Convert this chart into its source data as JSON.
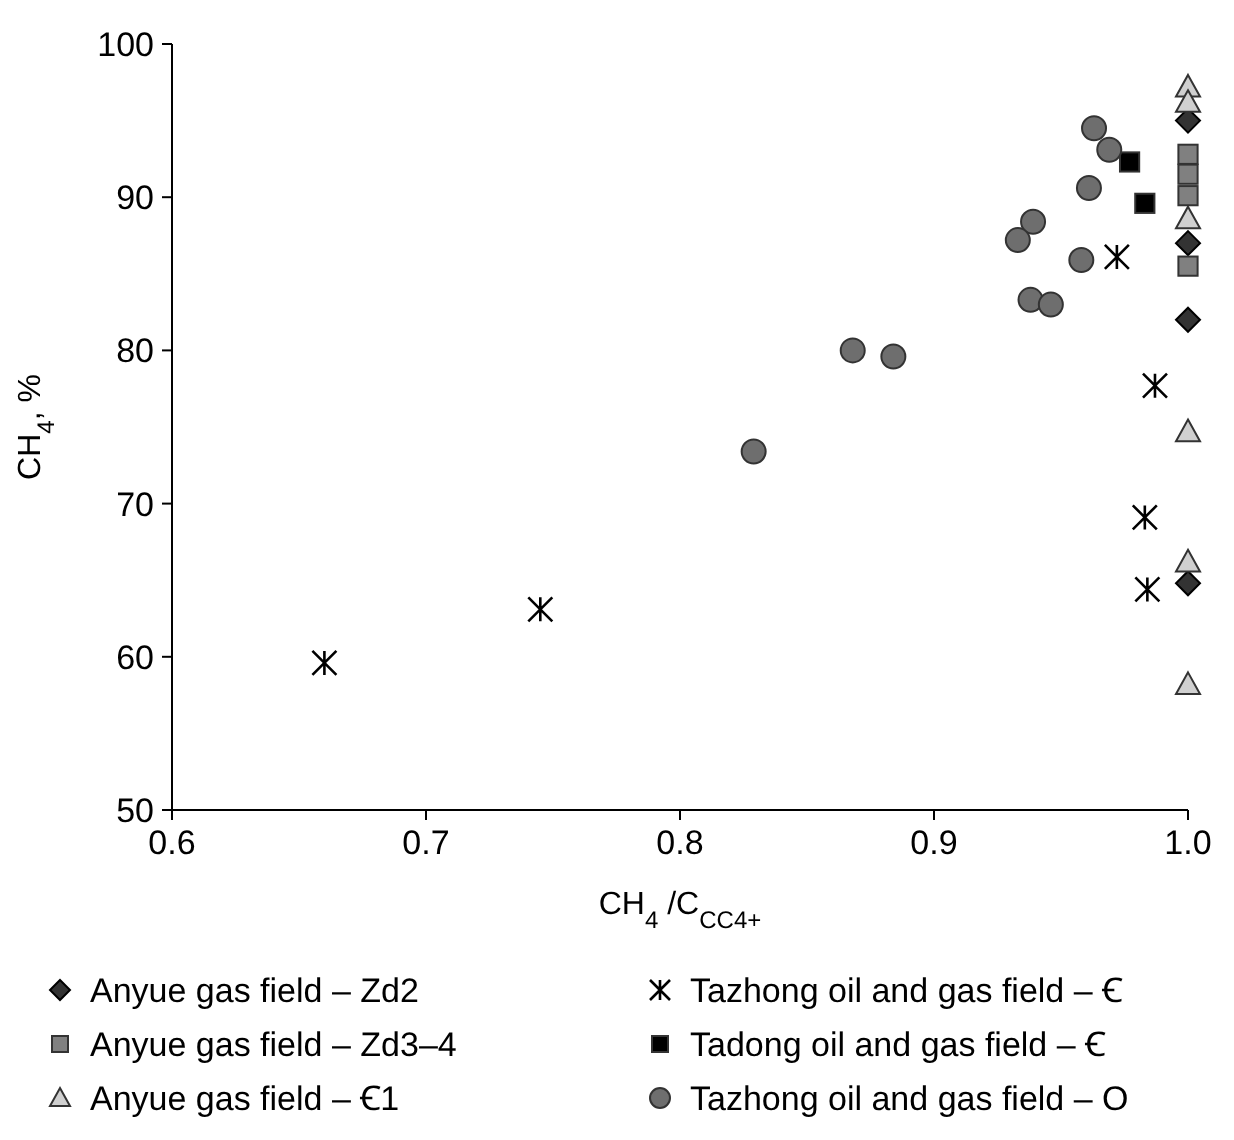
{
  "chart_data": {
    "type": "scatter",
    "xlabel": "CH$_{4}$ /C$_{CC4+}$",
    "ylabel": "CH$_{4}$, %",
    "xlim": [
      0.6,
      1.0
    ],
    "xticks": [
      {
        "value": 0.6,
        "label": "0.6"
      },
      {
        "value": 0.7,
        "label": "0.7"
      },
      {
        "value": 0.8,
        "label": "0.8"
      },
      {
        "value": 0.9,
        "label": "0.9"
      },
      {
        "value": 1.0,
        "label": "1.0"
      }
    ],
    "ylim": [
      50,
      100
    ],
    "yticks": [
      50,
      60,
      70,
      80,
      90,
      100
    ],
    "grid": false,
    "legend": "bottom",
    "series": [
      {
        "name": "Anyue gas field – Zd2",
        "color": "#333333",
        "marker": "diamond",
        "x": [
          1.0,
          1.0,
          1.0,
          1.0
        ],
        "values": [
          95,
          87,
          82,
          64.8
        ]
      },
      {
        "name": "Anyue gas field – Zd3–4",
        "color": "#808080",
        "marker": "square",
        "x": [
          1.0,
          1.0,
          1.0,
          1.0
        ],
        "values": [
          92.8,
          91.5,
          90.1,
          85.5
        ]
      },
      {
        "name": "Anyue gas field – Ꞓ1",
        "color": "#d0d0d0",
        "marker": "triangle",
        "x": [
          1.0,
          1.0,
          1.0,
          1.0,
          1.0,
          1.0
        ],
        "values": [
          97.2,
          96.2,
          88.6,
          74.7,
          66.2,
          58.2
        ]
      },
      {
        "name": "Tazhong oil and gas field – Ꞓ",
        "color": "#000000",
        "marker": "cross",
        "x": [
          0.66,
          0.745,
          0.972,
          0.987,
          0.983,
          0.984
        ],
        "values": [
          59.6,
          63.1,
          86.1,
          77.7,
          69.1,
          64.4
        ]
      },
      {
        "name": "Tadong oil and gas field – Ꞓ",
        "color": "#000000",
        "marker": "square",
        "x": [
          0.977,
          0.983
        ],
        "values": [
          92.3,
          89.6
        ]
      },
      {
        "name": "Tazhong oil and gas field – O",
        "color": "#6e6e6e",
        "marker": "circle",
        "x": [
          0.963,
          0.969,
          0.961,
          0.939,
          0.933,
          0.958,
          0.938,
          0.946,
          0.868,
          0.884,
          0.829
        ],
        "values": [
          94.5,
          93.1,
          90.6,
          88.4,
          87.2,
          85.9,
          83.3,
          83.0,
          80.0,
          79.6,
          73.4
        ]
      }
    ]
  }
}
